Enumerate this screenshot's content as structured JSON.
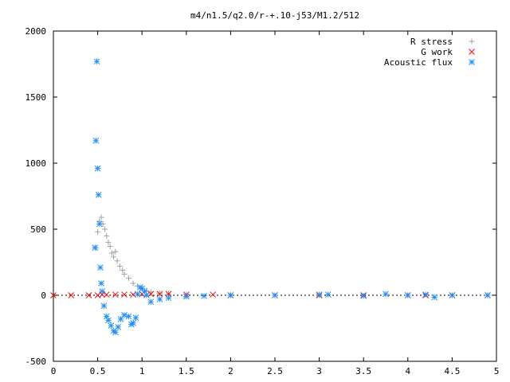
{
  "chart_data": {
    "type": "scatter",
    "title": "m4/n1.5/q2.0/r-+.10-j53/M1.2/512",
    "xlabel": "",
    "ylabel": "",
    "xlim": [
      0,
      5
    ],
    "ylim": [
      -500,
      2000
    ],
    "xticks": [
      "0",
      "0.5",
      "1",
      "1.5",
      "2",
      "2.5",
      "3",
      "3.5",
      "4",
      "4.5",
      "5"
    ],
    "yticks": [
      "-500",
      "0",
      "500",
      "1000",
      "1500",
      "2000"
    ],
    "grid": false,
    "legend_position": "top-right",
    "series": [
      {
        "name": "R stress",
        "marker": "plus",
        "color": "#a0a0a0",
        "x": [
          0.48,
          0.5,
          0.52,
          0.54,
          0.56,
          0.58,
          0.6,
          0.62,
          0.64,
          0.66,
          0.68,
          0.7,
          0.72,
          0.75,
          0.78,
          0.8,
          0.85,
          0.9,
          0.95,
          1.0,
          1.05,
          1.1,
          1.2,
          1.3,
          1.5,
          2.0,
          3.0,
          4.0,
          4.9
        ],
        "y": [
          360,
          480,
          560,
          590,
          540,
          500,
          450,
          400,
          370,
          320,
          290,
          330,
          260,
          220,
          190,
          160,
          130,
          90,
          70,
          50,
          35,
          25,
          15,
          10,
          5,
          2,
          1,
          0,
          0
        ]
      },
      {
        "name": "G work",
        "marker": "cross",
        "color": "#ff0000",
        "x": [
          0.0,
          0.2,
          0.4,
          0.5,
          0.55,
          0.6,
          0.7,
          0.8,
          0.9,
          1.0,
          1.1,
          1.2,
          1.3,
          1.5,
          1.8,
          2.0,
          2.5,
          3.0,
          3.5,
          4.0,
          4.2,
          4.5,
          4.9
        ],
        "y": [
          0,
          0,
          0,
          0,
          5,
          5,
          5,
          5,
          5,
          10,
          10,
          10,
          10,
          5,
          5,
          0,
          0,
          0,
          0,
          0,
          0,
          0,
          0
        ]
      },
      {
        "name": "Acoustic flux",
        "marker": "star",
        "color": "#1e90ff",
        "x": [
          0.47,
          0.48,
          0.49,
          0.5,
          0.51,
          0.52,
          0.53,
          0.54,
          0.55,
          0.57,
          0.6,
          0.62,
          0.65,
          0.68,
          0.7,
          0.73,
          0.76,
          0.8,
          0.85,
          0.88,
          0.9,
          0.93,
          0.95,
          0.98,
          1.0,
          1.03,
          1.05,
          1.1,
          1.2,
          1.3,
          1.5,
          1.7,
          2.0,
          2.5,
          3.0,
          3.1,
          3.5,
          3.75,
          4.0,
          4.2,
          4.3,
          4.5,
          4.9
        ],
        "y": [
          360,
          1170,
          1770,
          960,
          760,
          540,
          210,
          90,
          30,
          -80,
          -160,
          -190,
          -230,
          -270,
          -280,
          -240,
          -180,
          -150,
          -160,
          -220,
          -210,
          -170,
          10,
          60,
          50,
          30,
          0,
          -50,
          -30,
          -20,
          -10,
          -5,
          0,
          0,
          5,
          5,
          -5,
          10,
          0,
          5,
          -15,
          0,
          0
        ]
      }
    ]
  }
}
